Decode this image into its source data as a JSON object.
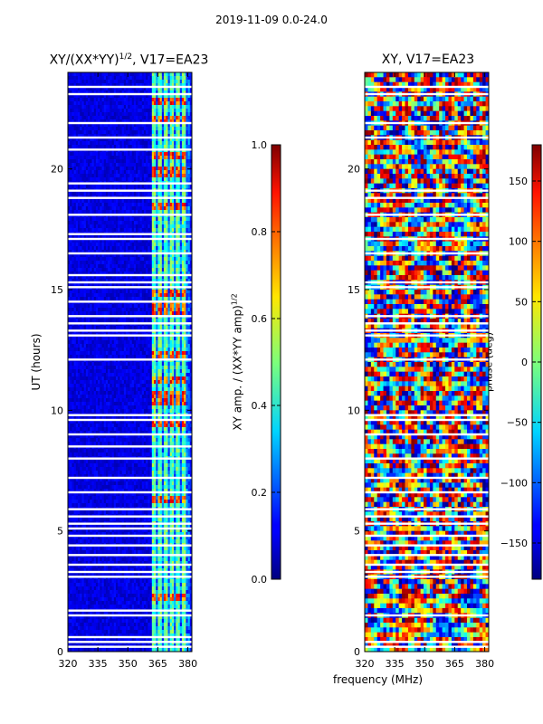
{
  "suptitle": "2019-11-09 0.0-24.0",
  "xlabel": "frequency (MHz)",
  "chart_data": [
    {
      "type": "heatmap",
      "title": "XY/(XX*YY)",
      "title_sup": "1/2",
      "title_tail": ", V17=EA23",
      "xlabel": "frequency (MHz)",
      "ylabel": "UT (hours)",
      "xlim": [
        320,
        382
      ],
      "ylim": [
        0,
        24
      ],
      "xticks": [
        320,
        335,
        350,
        365,
        380
      ],
      "yticks": [
        0,
        5,
        10,
        15,
        20
      ],
      "colorbar": {
        "label": "XY amp. / (XX*YY amp)",
        "label_sup": "1/2",
        "range": [
          0.0,
          1.0
        ],
        "ticks": [
          "0.0",
          "0.2",
          "0.4",
          "0.6",
          "0.8",
          "1.0"
        ],
        "colormap": "jet"
      },
      "bright_channels_mhz": [
        363,
        366,
        369,
        372,
        375,
        378
      ],
      "bright_hours": [
        2.2,
        6.3,
        9.4,
        10.3,
        10.6,
        11.2,
        12.3,
        14.1,
        14.4,
        14.9,
        18.4,
        19.8,
        20.0,
        20.6,
        22.1,
        22.8
      ],
      "gap_hours": [
        0.2,
        0.4,
        0.6,
        1.5,
        1.7,
        3.1,
        3.3,
        3.6,
        4.0,
        4.4,
        4.8,
        5.1,
        5.3,
        5.6,
        5.9,
        6.6,
        7.2,
        8.0,
        8.5,
        9.0,
        9.6,
        9.8,
        12.1,
        13.1,
        13.3,
        13.6,
        13.9,
        14.5,
        15.1,
        15.3,
        15.6,
        16.5,
        17.1,
        17.3,
        18.1,
        18.8,
        19.1,
        19.4,
        20.8,
        21.3,
        21.9,
        23.1,
        23.4
      ]
    },
    {
      "type": "heatmap",
      "title": "XY, V17=EA23",
      "xlabel": "frequency (MHz)",
      "ylabel": "",
      "xlim": [
        320,
        382
      ],
      "ylim": [
        0,
        24
      ],
      "xticks": [
        320,
        335,
        350,
        365,
        380
      ],
      "yticks": [
        0,
        5,
        10,
        15,
        20
      ],
      "colorbar": {
        "label": "phase (deg)",
        "range": [
          -180,
          180
        ],
        "ticks": [
          "150",
          "100",
          "50",
          "0",
          "−50",
          "−100",
          "−150"
        ],
        "tick_values": [
          150,
          100,
          50,
          0,
          -50,
          -100,
          -150
        ],
        "colormap": "jet"
      },
      "gap_hours": [
        0.2,
        0.4,
        1.5,
        3.1,
        3.3,
        3.6,
        4.0,
        4.4,
        4.8,
        5.3,
        5.6,
        5.9,
        6.6,
        7.2,
        8.0,
        9.0,
        9.6,
        9.8,
        12.1,
        13.1,
        13.3,
        13.6,
        13.9,
        15.1,
        15.3,
        16.5,
        17.1,
        18.1,
        18.8,
        19.1,
        21.3,
        21.9,
        23.1,
        23.4
      ]
    }
  ]
}
